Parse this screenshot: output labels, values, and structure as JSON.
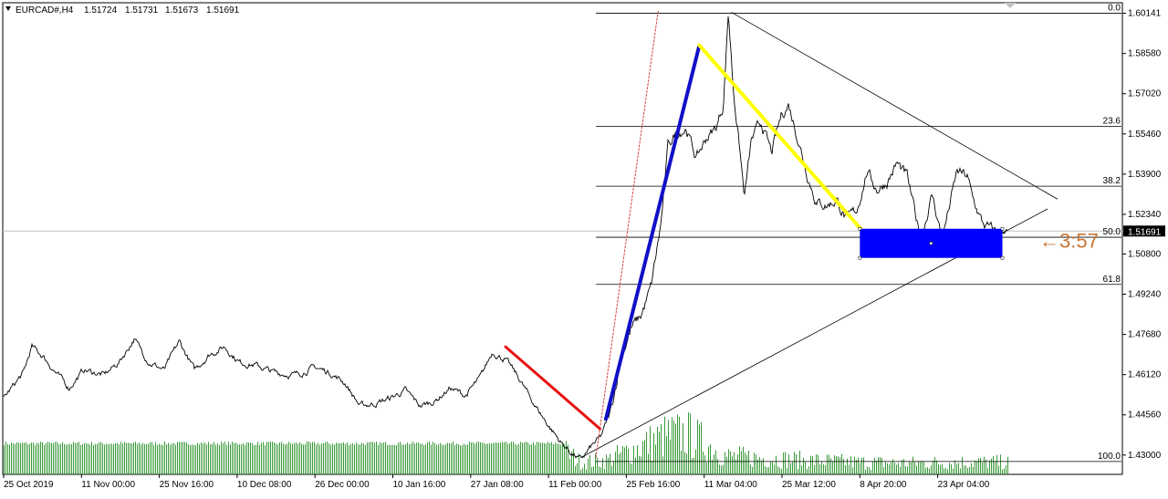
{
  "header": {
    "symbol": "EURCAD#,H4",
    "open": "1.51724",
    "high": "1.51731",
    "low": "1.51673",
    "close": "1.51691"
  },
  "colors": {
    "price_line": "#000000",
    "volume": "#3a9a3a",
    "red_line": "#e81010",
    "blue_line": "#1010c8",
    "yellow_line": "#ffff00",
    "zone": "#0000ff",
    "annotation": "#c87533",
    "fib": "#000000",
    "current_price_bg": "#000000"
  },
  "chart_data": {
    "type": "line",
    "title": "",
    "ylim": [
      1.4225,
      1.6055
    ],
    "y_ticks": [
      1.43,
      1.4456,
      1.4612,
      1.4768,
      1.4924,
      1.508,
      1.5234,
      1.539,
      1.5546,
      1.5702,
      1.5858,
      1.60141
    ],
    "y_tick_labels": [
      "1.43000",
      "1.44560",
      "1.46120",
      "1.47680",
      "1.49240",
      "1.50800",
      "1.52340",
      "1.53900",
      "1.55460",
      "1.57020",
      "1.58580",
      "1.60141"
    ],
    "x_labels": [
      "25 Oct 2019",
      "11 Nov 00:00",
      "25 Nov 16:00",
      "10 Dec 08:00",
      "26 Dec 00:00",
      "10 Jan 16:00",
      "27 Jan 08:00",
      "11 Feb 00:00",
      "25 Feb 16:00",
      "11 Mar 04:00",
      "25 Mar 12:00",
      "8 Apr 20:00",
      "23 Apr 04:00"
    ],
    "current_price": "1.51691",
    "price_series_anchors": [
      [
        0,
        1.452
      ],
      [
        0.02,
        1.462
      ],
      [
        0.028,
        1.472
      ],
      [
        0.04,
        1.468
      ],
      [
        0.052,
        1.462
      ],
      [
        0.065,
        1.456
      ],
      [
        0.08,
        1.463
      ],
      [
        0.1,
        1.461
      ],
      [
        0.115,
        1.466
      ],
      [
        0.13,
        1.475
      ],
      [
        0.145,
        1.466
      ],
      [
        0.16,
        1.463
      ],
      [
        0.175,
        1.474
      ],
      [
        0.19,
        1.463
      ],
      [
        0.205,
        1.469
      ],
      [
        0.22,
        1.472
      ],
      [
        0.235,
        1.466
      ],
      [
        0.25,
        1.465
      ],
      [
        0.27,
        1.462
      ],
      [
        0.29,
        1.461
      ],
      [
        0.31,
        1.464
      ],
      [
        0.325,
        1.462
      ],
      [
        0.34,
        1.458
      ],
      [
        0.355,
        1.449
      ],
      [
        0.37,
        1.45
      ],
      [
        0.385,
        1.452
      ],
      [
        0.4,
        1.455
      ],
      [
        0.415,
        1.449
      ],
      [
        0.43,
        1.451
      ],
      [
        0.445,
        1.456
      ],
      [
        0.46,
        1.453
      ],
      [
        0.475,
        1.46
      ],
      [
        0.487,
        1.47
      ],
      [
        0.5,
        1.467
      ],
      [
        0.513,
        1.46
      ],
      [
        0.525,
        1.452
      ],
      [
        0.54,
        1.443
      ],
      [
        0.555,
        1.435
      ],
      [
        0.565,
        1.431
      ],
      [
        0.575,
        1.428
      ],
      [
        0.585,
        1.433
      ],
      [
        0.595,
        1.437
      ],
      [
        0.605,
        1.447
      ],
      [
        0.615,
        1.468
      ],
      [
        0.625,
        1.479
      ],
      [
        0.635,
        1.484
      ],
      [
        0.645,
        1.495
      ],
      [
        0.655,
        1.52
      ],
      [
        0.662,
        1.55
      ],
      [
        0.67,
        1.555
      ],
      [
        0.68,
        1.557
      ],
      [
        0.69,
        1.545
      ],
      [
        0.7,
        1.553
      ],
      [
        0.71,
        1.557
      ],
      [
        0.717,
        1.566
      ],
      [
        0.722,
        1.602
      ],
      [
        0.727,
        1.572
      ],
      [
        0.733,
        1.55
      ],
      [
        0.738,
        1.53
      ],
      [
        0.745,
        1.552
      ],
      [
        0.755,
        1.559
      ],
      [
        0.765,
        1.547
      ],
      [
        0.775,
        1.562
      ],
      [
        0.782,
        1.566
      ],
      [
        0.79,
        1.555
      ],
      [
        0.8,
        1.54
      ],
      [
        0.81,
        1.528
      ],
      [
        0.82,
        1.527
      ],
      [
        0.83,
        1.529
      ],
      [
        0.84,
        1.521
      ],
      [
        0.85,
        1.525
      ],
      [
        0.86,
        1.54
      ],
      [
        0.87,
        1.533
      ],
      [
        0.88,
        1.536
      ],
      [
        0.89,
        1.543
      ],
      [
        0.9,
        1.538
      ],
      [
        0.91,
        1.52
      ],
      [
        0.915,
        1.516
      ],
      [
        0.925,
        1.531
      ],
      [
        0.935,
        1.514
      ],
      [
        0.95,
        1.54
      ],
      [
        0.96,
        1.538
      ],
      [
        0.965,
        1.53
      ],
      [
        0.975,
        1.52
      ],
      [
        0.985,
        1.517
      ]
    ],
    "volume_series_anchors": [
      [
        0,
        0.55
      ],
      [
        0.56,
        0.55
      ],
      [
        0.575,
        0.3
      ],
      [
        0.6,
        0.35
      ],
      [
        0.62,
        0.55
      ],
      [
        0.64,
        0.75
      ],
      [
        0.66,
        0.95
      ],
      [
        0.68,
        1.0
      ],
      [
        0.7,
        0.75
      ],
      [
        0.72,
        0.45
      ],
      [
        0.76,
        0.4
      ],
      [
        0.8,
        0.35
      ],
      [
        0.85,
        0.3
      ],
      [
        0.9,
        0.28
      ],
      [
        0.95,
        0.3
      ],
      [
        0.985,
        0.3
      ]
    ],
    "fib_levels": [
      {
        "label": "0.0",
        "price": 1.6014
      },
      {
        "label": "23.6",
        "price": 1.5575
      },
      {
        "label": "38.2",
        "price": 1.5343
      },
      {
        "label": "50.0",
        "price": 1.5145
      },
      {
        "label": "61.8",
        "price": 1.4962
      },
      {
        "label": "100.0",
        "price": 1.4275
      }
    ],
    "red_segment": [
      [
        0.5,
        1.472
      ],
      [
        0.594,
        1.4402
      ]
    ],
    "blue_segment": [
      [
        0.6,
        1.444
      ],
      [
        0.693,
        1.5888
      ]
    ],
    "yellow_segment": [
      [
        0.693,
        1.589
      ],
      [
        0.855,
        1.5173
      ]
    ],
    "dotted_segment": [
      [
        0.59,
        1.429
      ],
      [
        0.652,
        1.6022
      ]
    ],
    "triangle_upper": [
      [
        0.725,
        1.6018
      ],
      [
        1.05,
        1.5293
      ]
    ],
    "triangle_lower": [
      [
        0.575,
        1.429
      ],
      [
        1.04,
        1.5255
      ]
    ],
    "zone": {
      "x0": 0.853,
      "x1": 0.995,
      "y_top": 1.5178,
      "y_bottom": 1.5065
    },
    "annotation": "←3:57"
  }
}
